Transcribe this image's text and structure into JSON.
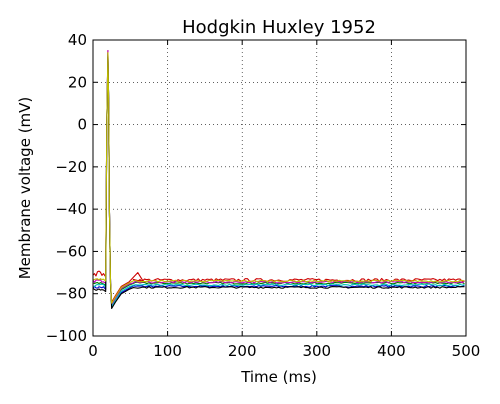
{
  "chart_data": {
    "type": "line",
    "title": "Hodgkin Huxley 1952",
    "xlabel": "Time (ms)",
    "ylabel": "Membrane voltage (mV)",
    "xlim": [
      0,
      500
    ],
    "ylim": [
      -100,
      40
    ],
    "xticks": [
      0,
      100,
      200,
      300,
      400,
      500
    ],
    "yticks": [
      -100,
      -80,
      -60,
      -40,
      -20,
      0,
      20,
      40
    ],
    "xtick_labels": [
      "0",
      "100",
      "200",
      "300",
      "400",
      "500"
    ],
    "ytick_labels": [
      "−100",
      "−80",
      "−60",
      "−40",
      "−20",
      "0",
      "20",
      "40"
    ],
    "grid": true,
    "series": [
      {
        "color": "#0000cc",
        "rest": -76.5,
        "spike_peak": 33,
        "ahp": -86,
        "pre": -77,
        "overshoot": -76.5
      },
      {
        "color": "#008000",
        "rest": -75.0,
        "spike_peak": 34,
        "ahp": -85,
        "pre": -75,
        "overshoot": -75.0
      },
      {
        "color": "#cc0000",
        "rest": -73.5,
        "spike_peak": 35,
        "ahp": -84,
        "pre": -71,
        "overshoot": -70
      },
      {
        "color": "#00bfbf",
        "rest": -75.8,
        "spike_peak": 33.5,
        "ahp": -86,
        "pre": -76,
        "overshoot": -76
      },
      {
        "color": "#bf00bf",
        "rest": -74.5,
        "spike_peak": 35,
        "ahp": -85,
        "pre": -74,
        "overshoot": -74.5
      },
      {
        "color": "#000000",
        "rest": -77.0,
        "spike_peak": 32,
        "ahp": -87,
        "pre": -78,
        "overshoot": -77
      },
      {
        "color": "#bfbf00",
        "rest": -74.0,
        "spike_peak": 34,
        "ahp": -84.5,
        "pre": -73,
        "overshoot": -73
      }
    ],
    "spike_time": 20
  }
}
